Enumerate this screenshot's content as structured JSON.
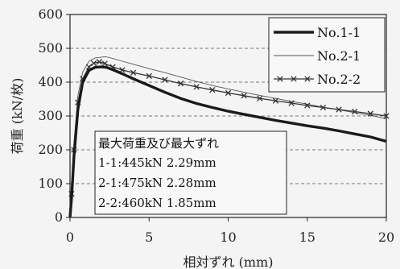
{
  "chart_data": {
    "type": "line",
    "xlabel": "相対ずれ (mm)",
    "ylabel": "荷重 (kN/枚)",
    "xlim": [
      0,
      20
    ],
    "ylim": [
      0,
      600
    ],
    "xticks": [
      0,
      5,
      10,
      15,
      20
    ],
    "yticks": [
      0,
      100,
      200,
      300,
      400,
      500,
      600
    ],
    "grid": "horizontal dashed",
    "legend_position": "top-right",
    "series": [
      {
        "name": "No.1-1",
        "style": "thick",
        "color": "#1a1a1a",
        "x": [
          0,
          0.1,
          0.25,
          0.5,
          0.8,
          1.2,
          1.6,
          2.0,
          2.29,
          2.7,
          3.3,
          4,
          5,
          6,
          7,
          8,
          9,
          10,
          11,
          12,
          13,
          14,
          15,
          16,
          17,
          18,
          19,
          20
        ],
        "y": [
          0,
          60,
          180,
          320,
          400,
          435,
          444,
          445,
          444,
          437,
          425,
          410,
          390,
          370,
          352,
          337,
          325,
          314,
          305,
          296,
          287,
          279,
          271,
          264,
          256,
          247,
          238,
          225
        ]
      },
      {
        "name": "No.2-1",
        "style": "thin",
        "color": "#555555",
        "x": [
          0,
          0.1,
          0.25,
          0.5,
          0.8,
          1.2,
          1.6,
          2.0,
          2.28,
          2.7,
          3.3,
          4,
          5,
          6,
          7,
          8,
          9,
          10,
          11,
          12,
          13,
          14,
          15,
          16,
          17,
          18,
          19,
          20
        ],
        "y": [
          0,
          80,
          220,
          360,
          430,
          462,
          472,
          474,
          475,
          470,
          462,
          453,
          440,
          428,
          415,
          402,
          390,
          380,
          370,
          361,
          352,
          343,
          335,
          326,
          318,
          310,
          302,
          292
        ]
      },
      {
        "name": "No.2-2",
        "style": "markers",
        "color": "#333333",
        "x": [
          0,
          0.1,
          0.25,
          0.5,
          0.8,
          1.2,
          1.5,
          1.85,
          2.2,
          2.7,
          3.3,
          4,
          5,
          6,
          7,
          8,
          9,
          10,
          11,
          12,
          13,
          14,
          15,
          16,
          17,
          18,
          19,
          20
        ],
        "y": [
          0,
          70,
          200,
          340,
          410,
          445,
          456,
          460,
          455,
          445,
          436,
          428,
          418,
          407,
          396,
          386,
          377,
          368,
          360,
          352,
          345,
          338,
          331,
          325,
          319,
          313,
          307,
          300
        ]
      }
    ],
    "annotation": {
      "title": "最大荷重及び最大ずれ",
      "lines": [
        "1-1:445kN  2.29mm",
        "2-1:475kN  2.28mm",
        "2-2:460kN  1.85mm"
      ]
    }
  }
}
